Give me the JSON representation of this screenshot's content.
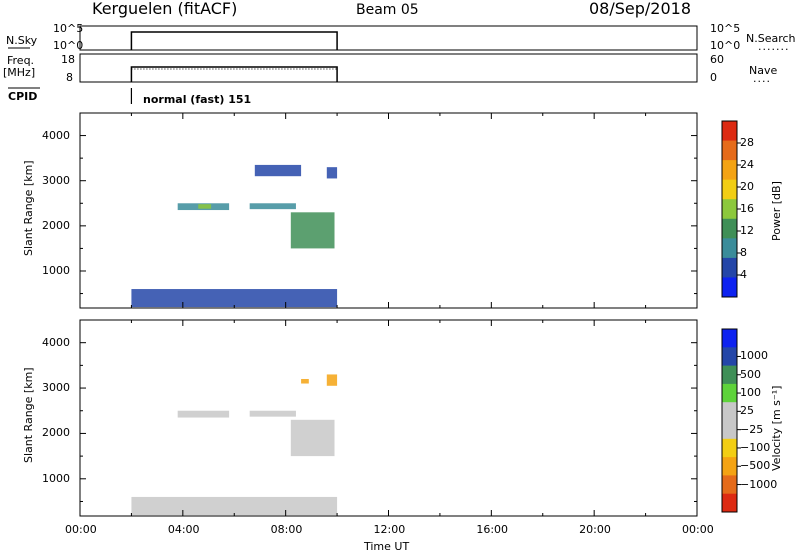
{
  "header": {
    "site": "Kerguelen (fitACF)",
    "beam": "Beam 05",
    "date": "08/Sep/2018"
  },
  "strips": {
    "nsky_label": "N.Sky",
    "nsky_ticks": [
      "10^5",
      "10^0"
    ],
    "nsearch_label": "N.Search",
    "nsearch_ticks": [
      "10^5",
      "10^0"
    ],
    "freq_label": "Freq.",
    "freq_unit": "[MHz]",
    "freq_ticks": [
      "18",
      "8"
    ],
    "nave_label": "Nave",
    "nave_ticks": [
      "60",
      "0"
    ],
    "cpid_label": "CPID",
    "cpid_value": "normal (fast) 151"
  },
  "chart_data": [
    {
      "type": "heatmap",
      "title": "",
      "xlabel": "Time UT",
      "ylabel": "Slant Range [km]",
      "x_ticks": [
        "00:00",
        "04:00",
        "08:00",
        "12:00",
        "16:00",
        "20:00",
        "00:00"
      ],
      "x_range_hours": [
        0,
        24
      ],
      "y_ticks": [
        1000,
        2000,
        3000,
        4000
      ],
      "ylim": [
        180,
        4500
      ],
      "colorbar_label": "Power [dB]",
      "colorbar_ticks": [
        4,
        8,
        12,
        16,
        20,
        24,
        28
      ],
      "colorbar_range": [
        0,
        32
      ],
      "colorbar_colors": [
        "#0d22f0",
        "#2446a8",
        "#3a8c9a",
        "#3f8f57",
        "#8cc83c",
        "#f2ce14",
        "#f4a313",
        "#e56b1a",
        "#dd2a12"
      ],
      "observation_window_hours": [
        2,
        10
      ],
      "echo_regions": [
        {
          "t_start": 2.0,
          "t_end": 10.0,
          "range_low": 200,
          "range_high": 600,
          "value": 6
        },
        {
          "t_start": 3.8,
          "t_end": 5.8,
          "range_low": 2350,
          "range_high": 2500,
          "value": 10
        },
        {
          "t_start": 4.6,
          "t_end": 5.1,
          "range_low": 2380,
          "range_high": 2480,
          "value": 16
        },
        {
          "t_start": 6.6,
          "t_end": 8.4,
          "range_low": 2370,
          "range_high": 2500,
          "value": 8
        },
        {
          "t_start": 8.2,
          "t_end": 9.9,
          "range_low": 1500,
          "range_high": 2300,
          "value": 14
        },
        {
          "t_start": 9.6,
          "t_end": 10.0,
          "range_low": 3050,
          "range_high": 3300,
          "value": 6
        },
        {
          "t_start": 6.8,
          "t_end": 8.6,
          "range_low": 3100,
          "range_high": 3350,
          "value": 4
        }
      ]
    },
    {
      "type": "heatmap",
      "title": "",
      "xlabel": "Time UT",
      "ylabel": "Slant Range [km]",
      "x_ticks": [
        "00:00",
        "04:00",
        "08:00",
        "12:00",
        "16:00",
        "20:00",
        "00:00"
      ],
      "x_range_hours": [
        0,
        24
      ],
      "y_ticks": [
        1000,
        2000,
        3000,
        4000
      ],
      "ylim": [
        180,
        4500
      ],
      "colorbar_label": "Velocity [m s⁻¹]",
      "colorbar_ticks": [
        "1000",
        "500",
        "100",
        "25",
        "−25",
        "−100",
        "−500",
        "−1000"
      ],
      "colorbar_colors": [
        "#0d22f0",
        "#2446a8",
        "#3f8f57",
        "#5ed33a",
        "#c8c8c8",
        "#c8c8c8",
        "#f2ce14",
        "#f4a313",
        "#e56b1a",
        "#dd2a12"
      ],
      "observation_window_hours": [
        2,
        10
      ],
      "echo_regions": [
        {
          "t_start": 2.0,
          "t_end": 10.0,
          "range_low": 200,
          "range_high": 600,
          "value": 0
        },
        {
          "t_start": 3.8,
          "t_end": 5.8,
          "range_low": 2350,
          "range_high": 2500,
          "value": 0
        },
        {
          "t_start": 6.6,
          "t_end": 8.4,
          "range_low": 2370,
          "range_high": 2500,
          "value": 0
        },
        {
          "t_start": 8.2,
          "t_end": 9.9,
          "range_low": 1500,
          "range_high": 2300,
          "value": 0
        },
        {
          "t_start": 9.6,
          "t_end": 10.0,
          "range_low": 3050,
          "range_high": 3300,
          "value": -300
        },
        {
          "t_start": 8.6,
          "t_end": 8.9,
          "range_low": 3100,
          "range_high": 3200,
          "value": -300
        }
      ]
    }
  ]
}
